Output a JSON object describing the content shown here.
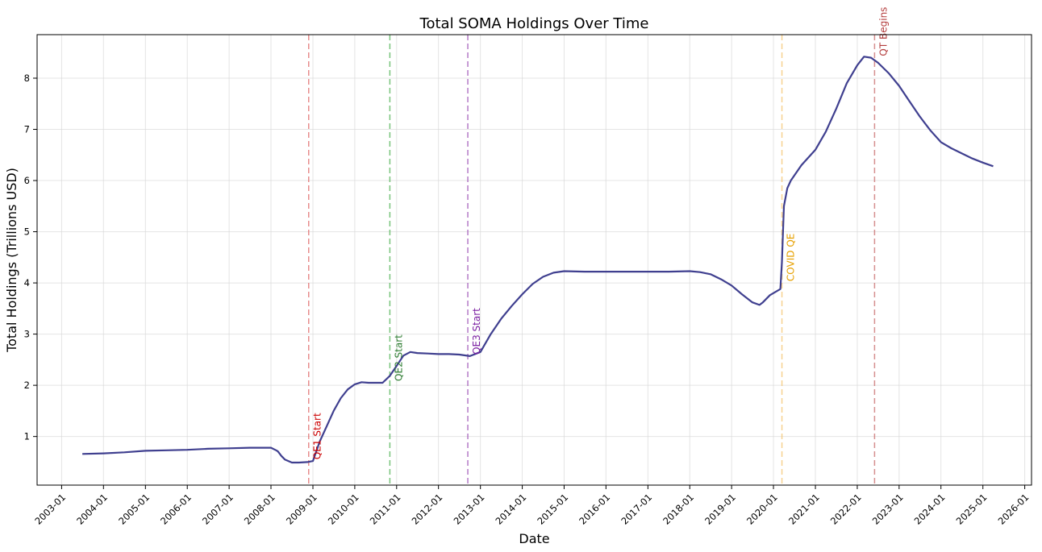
{
  "chart_data": {
    "type": "line",
    "title": "Total SOMA Holdings Over Time",
    "xlabel": "Date",
    "ylabel": "Total Holdings (Trillions USD)",
    "xlim": [
      "2002-06-01",
      "2026-03-01"
    ],
    "ylim": [
      0.05,
      8.85
    ],
    "grid": true,
    "x_ticks": [
      "2003-01",
      "2004-01",
      "2005-01",
      "2006-01",
      "2007-01",
      "2008-01",
      "2009-01",
      "2010-01",
      "2011-01",
      "2012-01",
      "2013-01",
      "2014-01",
      "2015-01",
      "2016-01",
      "2017-01",
      "2018-01",
      "2019-01",
      "2020-01",
      "2021-01",
      "2022-01",
      "2023-01",
      "2024-01",
      "2025-01",
      "2026-01"
    ],
    "y_ticks": [
      1,
      2,
      3,
      4,
      5,
      6,
      7,
      8
    ],
    "series": [
      {
        "color": "#3f3f8f",
        "x": [
          "2003-07-01",
          "2004-01-01",
          "2004-07-01",
          "2005-01-01",
          "2005-07-01",
          "2006-01-01",
          "2006-07-01",
          "2007-01-01",
          "2007-07-01",
          "2008-01-01",
          "2008-02-15",
          "2008-03-01",
          "2008-04-01",
          "2008-05-01",
          "2008-07-01",
          "2008-09-01",
          "2008-11-15",
          "2009-01-01",
          "2009-03-01",
          "2009-05-01",
          "2009-07-01",
          "2009-09-01",
          "2009-11-01",
          "2010-01-01",
          "2010-03-01",
          "2010-05-01",
          "2010-07-01",
          "2010-09-01",
          "2010-11-01",
          "2011-01-01",
          "2011-03-01",
          "2011-05-01",
          "2011-07-01",
          "2011-10-01",
          "2012-01-01",
          "2012-04-01",
          "2012-07-01",
          "2012-10-01",
          "2013-01-01",
          "2013-04-01",
          "2013-07-01",
          "2013-10-01",
          "2014-01-01",
          "2014-04-01",
          "2014-07-01",
          "2014-10-01",
          "2015-01-01",
          "2015-07-01",
          "2016-01-01",
          "2016-07-01",
          "2017-01-01",
          "2017-07-01",
          "2018-01-01",
          "2018-04-01",
          "2018-07-01",
          "2018-10-01",
          "2019-01-01",
          "2019-04-01",
          "2019-07-01",
          "2019-09-01",
          "2019-10-01",
          "2019-12-01",
          "2020-03-01",
          "2020-03-15",
          "2020-04-01",
          "2020-05-01",
          "2020-06-01",
          "2020-09-01",
          "2021-01-01",
          "2021-04-01",
          "2021-07-01",
          "2021-10-01",
          "2022-01-01",
          "2022-03-01",
          "2022-05-01",
          "2022-07-01",
          "2022-10-01",
          "2023-01-01",
          "2023-04-01",
          "2023-07-01",
          "2023-10-01",
          "2024-01-01",
          "2024-04-01",
          "2024-07-01",
          "2024-10-01",
          "2025-01-01",
          "2025-04-01"
        ],
        "y": [
          0.66,
          0.67,
          0.69,
          0.72,
          0.73,
          0.74,
          0.76,
          0.77,
          0.78,
          0.78,
          0.73,
          0.71,
          0.62,
          0.55,
          0.49,
          0.49,
          0.5,
          0.52,
          0.9,
          1.2,
          1.5,
          1.75,
          1.92,
          2.02,
          2.06,
          2.05,
          2.05,
          2.05,
          2.18,
          2.38,
          2.58,
          2.65,
          2.63,
          2.62,
          2.61,
          2.61,
          2.6,
          2.57,
          2.65,
          3.0,
          3.3,
          3.55,
          3.78,
          3.98,
          4.12,
          4.2,
          4.23,
          4.22,
          4.22,
          4.22,
          4.22,
          4.22,
          4.23,
          4.21,
          4.17,
          4.07,
          3.95,
          3.78,
          3.62,
          3.57,
          3.62,
          3.76,
          3.88,
          4.4,
          5.5,
          5.85,
          6.0,
          6.3,
          6.6,
          6.95,
          7.4,
          7.9,
          8.25,
          8.42,
          8.4,
          8.3,
          8.1,
          7.85,
          7.55,
          7.25,
          6.98,
          6.75,
          6.63,
          6.53,
          6.43,
          6.35,
          6.28
        ]
      }
    ],
    "events": [
      {
        "date": "2008-11-25",
        "label": "QE1 Start",
        "color": "#e06666",
        "text_color": "#cc0000"
      },
      {
        "date": "2010-11-03",
        "label": "QE2 Start",
        "color": "#4caf50",
        "text_color": "#2e7d32"
      },
      {
        "date": "2012-09-13",
        "label": "QE3 Start",
        "color": "#9c4fb5",
        "text_color": "#7b1fa2"
      },
      {
        "date": "2020-03-15",
        "label": "COVID QE",
        "color": "#f5c36b",
        "text_color": "#e6a000"
      },
      {
        "date": "2022-06-01",
        "label": "QT Begins",
        "color": "#c96a6a",
        "text_color": "#b33c3c"
      }
    ]
  }
}
